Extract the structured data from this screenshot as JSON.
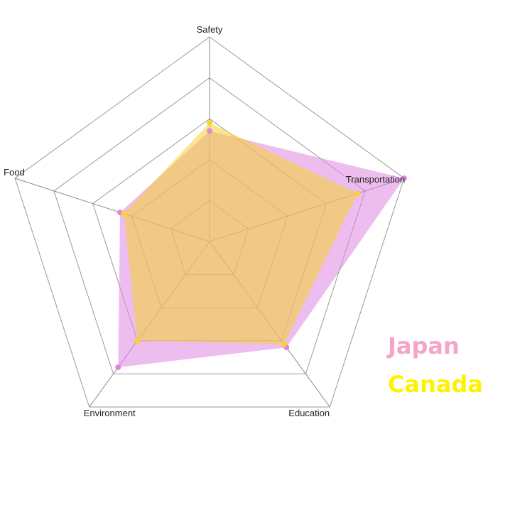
{
  "chart_data": {
    "type": "radar",
    "categories": [
      "Safety",
      "Transportation",
      "Education",
      "Environment",
      "Food"
    ],
    "rmax": 5,
    "grid_levels": [
      1,
      2,
      3,
      4,
      5
    ],
    "series": [
      {
        "name": "Japan",
        "values": [
          2.7,
          5.0,
          3.2,
          3.8,
          2.3
        ],
        "fill": "#dd86e0",
        "fill_opacity": 0.55,
        "point_color": "#dd86e0",
        "legend_color": "#f6a5c8"
      },
      {
        "name": "Canada",
        "values": [
          2.9,
          3.8,
          3.1,
          3.0,
          2.2
        ],
        "fill": "#f7d233",
        "fill_opacity": 0.55,
        "point_color": "#f7d233",
        "legend_color": "#fff200"
      }
    ],
    "legend_position": "bottom-right",
    "grid": true
  }
}
